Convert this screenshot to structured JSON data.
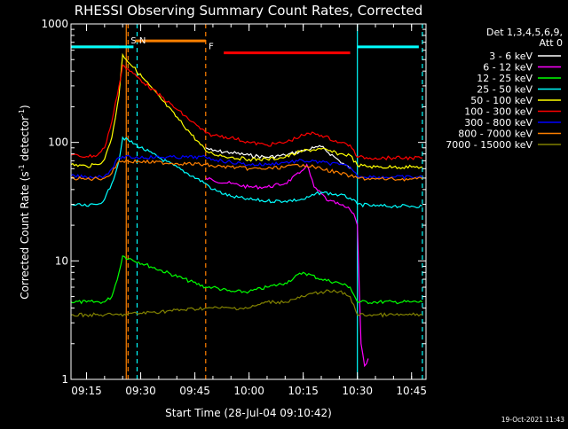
{
  "chart_data": {
    "type": "line",
    "title": "RHESSI Observing Summary Count Rates, Corrected",
    "xlabel": "Start Time (28-Jul-04 09:10:42)",
    "ylabel_prefix": "Corrected Count Rate (s",
    "ylabel_mid": " detector",
    "ylabel_suffix": ")",
    "ylabel_exponent": "-1",
    "y_scale": "log",
    "ylim": [
      1,
      1000
    ],
    "xlim": [
      "09:10:42",
      "10:49:00"
    ],
    "y_ticks": [
      {
        "value": 1,
        "label": "1"
      },
      {
        "value": 10,
        "label": "10"
      },
      {
        "value": 100,
        "label": "100"
      },
      {
        "value": 1000,
        "label": "1000"
      }
    ],
    "x_ticks": [
      {
        "value": "09:15",
        "label": "09:15"
      },
      {
        "value": "09:30",
        "label": "09:30"
      },
      {
        "value": "09:45",
        "label": "09:45"
      },
      {
        "value": "10:00",
        "label": "10:00"
      },
      {
        "value": "10:15",
        "label": "10:15"
      },
      {
        "value": "10:30",
        "label": "10:30"
      },
      {
        "value": "10:45",
        "label": "10:45"
      }
    ],
    "legend": {
      "placement": "right",
      "header_line1": "Det 1,3,4,5,6,9,",
      "header_line2": "Att 0"
    },
    "series": [
      {
        "name": "3 - 6 keV",
        "color": "#ffffff",
        "x": [
          "09:10:42",
          "09:15",
          "09:18",
          "09:20",
          "09:22",
          "09:24:30",
          "09:48",
          "09:50",
          "09:55",
          "10:00",
          "10:05",
          "10:10",
          "10:15",
          "10:18",
          "10:20",
          "10:25",
          "10:28",
          "10:30",
          "10:35",
          "10:40",
          "10:45",
          "10:48"
        ],
        "y": [
          null,
          null,
          null,
          null,
          null,
          null,
          90,
          85,
          82,
          78,
          75,
          78,
          85,
          90,
          92,
          70,
          60,
          null,
          null,
          null,
          null,
          null
        ]
      },
      {
        "name": "6 - 12 keV",
        "color": "#ff00ff",
        "x": [
          "09:10:42",
          "09:48",
          "09:50",
          "09:55",
          "10:00",
          "10:05",
          "10:10",
          "10:14",
          "10:16",
          "10:18",
          "10:22",
          "10:25",
          "10:28",
          "10:29",
          "10:30",
          "10:31",
          "10:32",
          "10:33"
        ],
        "y": [
          null,
          50,
          48,
          45,
          42,
          42,
          45,
          55,
          65,
          42,
          32,
          30,
          27,
          25,
          20,
          2,
          1.3,
          1.5
        ]
      },
      {
        "name": "12 - 25 keV",
        "color": "#00ff00",
        "x": [
          "09:10:42",
          "09:15",
          "09:20",
          "09:22",
          "09:24",
          "09:25",
          "09:48",
          "09:50",
          "09:55",
          "10:00",
          "10:05",
          "10:10",
          "10:15",
          "10:20",
          "10:25",
          "10:28",
          "10:30",
          "10:35",
          "10:40",
          "10:45",
          "10:48"
        ],
        "y": [
          4.5,
          4.5,
          4.5,
          5,
          8,
          11,
          6,
          6,
          5.5,
          5.5,
          6,
          6.5,
          8,
          7,
          6.5,
          6,
          4.5,
          4.5,
          4.5,
          4.5,
          4.5
        ]
      },
      {
        "name": "25 - 50 keV",
        "color": "#00ffff",
        "x": [
          "09:10:42",
          "09:15",
          "09:18",
          "09:20",
          "09:22",
          "09:24",
          "09:25",
          "09:48",
          "09:50",
          "09:55",
          "10:00",
          "10:05",
          "10:10",
          "10:15",
          "10:20",
          "10:25",
          "10:28",
          "10:30",
          "10:35",
          "10:40",
          "10:45",
          "10:48"
        ],
        "y": [
          30,
          29,
          30,
          33,
          45,
          70,
          110,
          45,
          40,
          35,
          33,
          32,
          32,
          33,
          38,
          36,
          34,
          30,
          29,
          29,
          29,
          29
        ]
      },
      {
        "name": "50 - 100 keV",
        "color": "#ffff00",
        "x": [
          "09:10:42",
          "09:15",
          "09:18",
          "09:20",
          "09:22",
          "09:24",
          "09:25",
          "09:48",
          "09:50",
          "09:55",
          "10:00",
          "10:05",
          "10:10",
          "10:15",
          "10:20",
          "10:25",
          "10:28",
          "10:30",
          "10:35",
          "10:40",
          "10:45",
          "10:48"
        ],
        "y": [
          65,
          63,
          65,
          72,
          110,
          250,
          550,
          85,
          80,
          75,
          72,
          72,
          75,
          85,
          88,
          80,
          78,
          64,
          62,
          62,
          62,
          62
        ]
      },
      {
        "name": "100 - 300 keV",
        "color": "#ff0000",
        "x": [
          "09:10:42",
          "09:15",
          "09:18",
          "09:20",
          "09:22",
          "09:24",
          "09:25",
          "09:48",
          "09:50",
          "09:55",
          "10:00",
          "10:05",
          "10:10",
          "10:15",
          "10:18",
          "10:20",
          "10:25",
          "10:28",
          "10:30",
          "10:35",
          "10:40",
          "10:45",
          "10:48"
        ],
        "y": [
          78,
          76,
          78,
          90,
          150,
          300,
          450,
          120,
          115,
          110,
          100,
          95,
          100,
          115,
          120,
          115,
          100,
          95,
          75,
          74,
          74,
          74,
          74
        ]
      },
      {
        "name": "300 - 800 keV",
        "color": "#0000ff",
        "x": [
          "09:10:42",
          "09:15",
          "09:20",
          "09:22",
          "09:24",
          "09:48",
          "09:50",
          "09:55",
          "10:00",
          "10:05",
          "10:10",
          "10:15",
          "10:20",
          "10:25",
          "10:28",
          "10:30",
          "10:35",
          "10:40",
          "10:45",
          "10:48"
        ],
        "y": [
          52,
          51,
          52,
          60,
          75,
          75,
          72,
          68,
          65,
          65,
          68,
          70,
          68,
          65,
          62,
          52,
          51,
          51,
          51,
          51
        ]
      },
      {
        "name": "800 - 7000 keV",
        "color": "#ff8000",
        "x": [
          "09:10:42",
          "09:15",
          "09:20",
          "09:22",
          "09:24",
          "09:48",
          "09:50",
          "09:55",
          "10:00",
          "10:05",
          "10:10",
          "10:15",
          "10:20",
          "10:25",
          "10:28",
          "10:30",
          "10:35",
          "10:40",
          "10:45",
          "10:48"
        ],
        "y": [
          50,
          49,
          50,
          55,
          70,
          65,
          63,
          62,
          60,
          60,
          62,
          65,
          60,
          55,
          52,
          50,
          49,
          49,
          49,
          49
        ]
      },
      {
        "name": "7000 - 15000 keV",
        "color": "#808000",
        "x": [
          "09:10:42",
          "09:15",
          "09:20",
          "09:24",
          "09:48",
          "09:50",
          "09:55",
          "10:00",
          "10:05",
          "10:10",
          "10:15",
          "10:20",
          "10:25",
          "10:28",
          "10:30",
          "10:35",
          "10:40",
          "10:45",
          "10:48"
        ],
        "y": [
          3.5,
          3.5,
          3.5,
          3.5,
          4,
          4,
          4,
          4,
          4.5,
          4.5,
          5,
          5.5,
          5.5,
          5,
          3.5,
          3.5,
          3.5,
          3.5,
          3.5
        ]
      }
    ],
    "flag_bars": [
      {
        "label": "S",
        "color": "#ff8000",
        "start": "09:10:42",
        "end": "09:24:00",
        "level": "",
        "level_value": 640,
        "label_at": "09:28:00"
      },
      {
        "label": "",
        "color": "#ff8000",
        "start": "09:28:30",
        "end": "09:48:00",
        "level_value": 720
      },
      {
        "label": "N",
        "color": "#00ffff",
        "start": "09:10:42",
        "end": "09:28:00",
        "level_value": 640,
        "label_at": "09:30:30"
      },
      {
        "label": "F",
        "color": "#ff0000",
        "start": "09:53:00",
        "end": "10:28:00",
        "level_value": 570,
        "label_at": "09:49:30"
      },
      {
        "label": "",
        "color": "#00ffff",
        "start": "10:30:00",
        "end": "10:47:00",
        "level_value": 640
      }
    ],
    "vertical_markers": [
      {
        "time": "09:26:00",
        "color": "#ff8000",
        "style": "solid"
      },
      {
        "time": "09:26:30",
        "color": "#ff8000",
        "style": "dashed"
      },
      {
        "time": "09:29:00",
        "color": "#00ffff",
        "style": "dashed"
      },
      {
        "time": "09:48:00",
        "color": "#ff8000",
        "style": "dashed"
      },
      {
        "time": "10:30:00",
        "color": "#00ffff",
        "style": "solid"
      },
      {
        "time": "10:48:00",
        "color": "#00ffff",
        "style": "dashed"
      }
    ],
    "timestamp": "19-Oct-2021 11:43"
  }
}
